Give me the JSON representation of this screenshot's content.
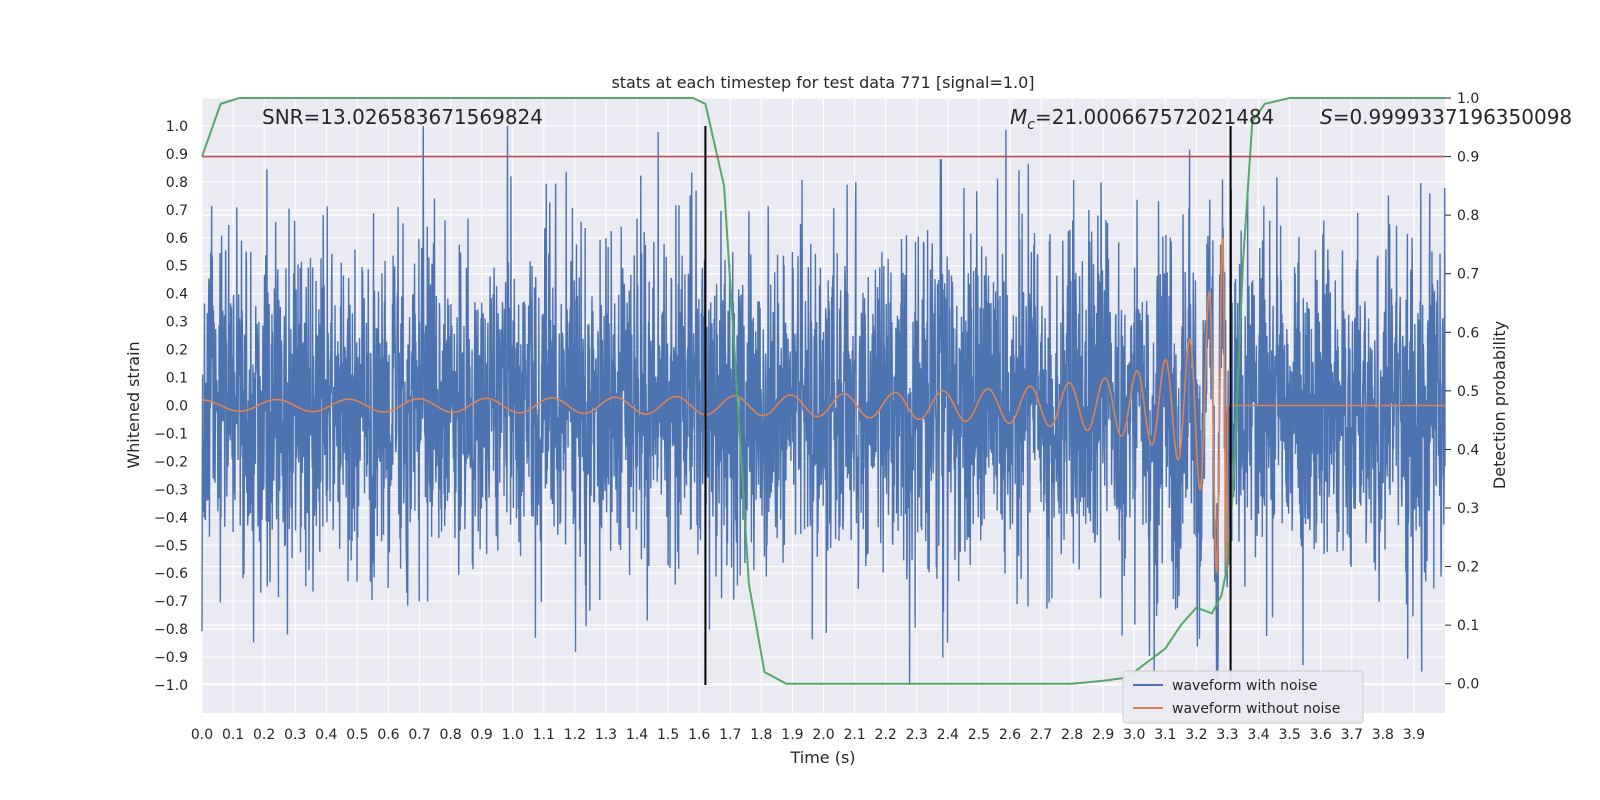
{
  "chart_data": {
    "type": "line",
    "title": "stats at each timestep for test data 771 [signal=1.0]",
    "xlabel": "Time (s)",
    "ylabel": "Whitened strain",
    "y2label": "Detection probability",
    "xlim": [
      0.0,
      4.0
    ],
    "ylim": [
      -1.1,
      1.1
    ],
    "y2lim": [
      -0.05,
      1.0
    ],
    "x_ticks": [
      "0.0",
      "0.1",
      "0.2",
      "0.3",
      "0.4",
      "0.5",
      "0.6",
      "0.7",
      "0.8",
      "0.9",
      "1.0",
      "1.1",
      "1.2",
      "1.3",
      "1.4",
      "1.5",
      "1.6",
      "1.7",
      "1.8",
      "1.9",
      "2.0",
      "2.1",
      "2.2",
      "2.3",
      "2.4",
      "2.5",
      "2.6",
      "2.7",
      "2.8",
      "2.9",
      "3.0",
      "3.1",
      "3.2",
      "3.3",
      "3.4",
      "3.5",
      "3.6",
      "3.7",
      "3.8",
      "3.9"
    ],
    "y_ticks": [
      "1.0",
      "0.9",
      "0.8",
      "0.7",
      "0.6",
      "0.5",
      "0.4",
      "0.3",
      "0.2",
      "0.1",
      "0.0",
      "-0.1",
      "-0.2",
      "-0.3",
      "-0.4",
      "-0.5",
      "-0.6",
      "-0.7",
      "-0.8",
      "-0.9",
      "-1.0"
    ],
    "y2_ticks": [
      "1.0",
      "0.9",
      "0.8",
      "0.7",
      "0.6",
      "0.5",
      "0.4",
      "0.3",
      "0.2",
      "0.1",
      "0.0"
    ],
    "annotations": {
      "snr": "SNR=13.026583671569824",
      "mc_symbol": "M",
      "mc_sub": "c",
      "mc_value": "=21.000667572021484",
      "s_symbol": "S",
      "s_value": "=0.9999337196350098"
    },
    "threshold": {
      "axis": "y2",
      "value": 0.9,
      "color": "#c44e52"
    },
    "vlines": [
      {
        "x": 1.62,
        "ymin": -1.0,
        "ymax": 1.0,
        "color": "#000000"
      },
      {
        "x": 3.31,
        "ymin": -1.0,
        "ymax": 1.0,
        "color": "#000000"
      }
    ],
    "series": [
      {
        "name": "waveform with noise",
        "color": "#4c72b0",
        "noise_amplitude": 0.3,
        "range": [
          -1.0,
          1.0
        ]
      },
      {
        "name": "waveform without noise",
        "color": "#dd8452",
        "chirp_start_amp": 0.02,
        "chirp_peak_amp": 0.6,
        "merger_time": 3.3
      },
      {
        "name": "detection probability",
        "axis": "y2",
        "color": "#55a868",
        "x": [
          0.0,
          0.06,
          0.12,
          0.3,
          0.6,
          0.9,
          1.2,
          1.5,
          1.58,
          1.62,
          1.68,
          1.71,
          1.76,
          1.81,
          1.88,
          2.0,
          2.5,
          2.8,
          2.9,
          2.97,
          3.0,
          3.05,
          3.1,
          3.15,
          3.2,
          3.25,
          3.28,
          3.3,
          3.32,
          3.35,
          3.38,
          3.42,
          3.5,
          4.0
        ],
        "y": [
          0.9,
          0.99,
          1.0,
          1.0,
          1.0,
          1.0,
          1.0,
          1.0,
          1.0,
          0.99,
          0.85,
          0.6,
          0.17,
          0.02,
          0.0,
          0.0,
          0.0,
          0.0,
          0.005,
          0.01,
          0.02,
          0.04,
          0.06,
          0.1,
          0.13,
          0.12,
          0.15,
          0.2,
          0.35,
          0.72,
          0.96,
          0.99,
          1.0,
          1.0
        ]
      }
    ],
    "legend": {
      "position": "bottom-right",
      "entries": [
        "waveform with noise",
        "waveform without noise"
      ]
    },
    "background_color": "#eaeaf2",
    "grid": true
  }
}
